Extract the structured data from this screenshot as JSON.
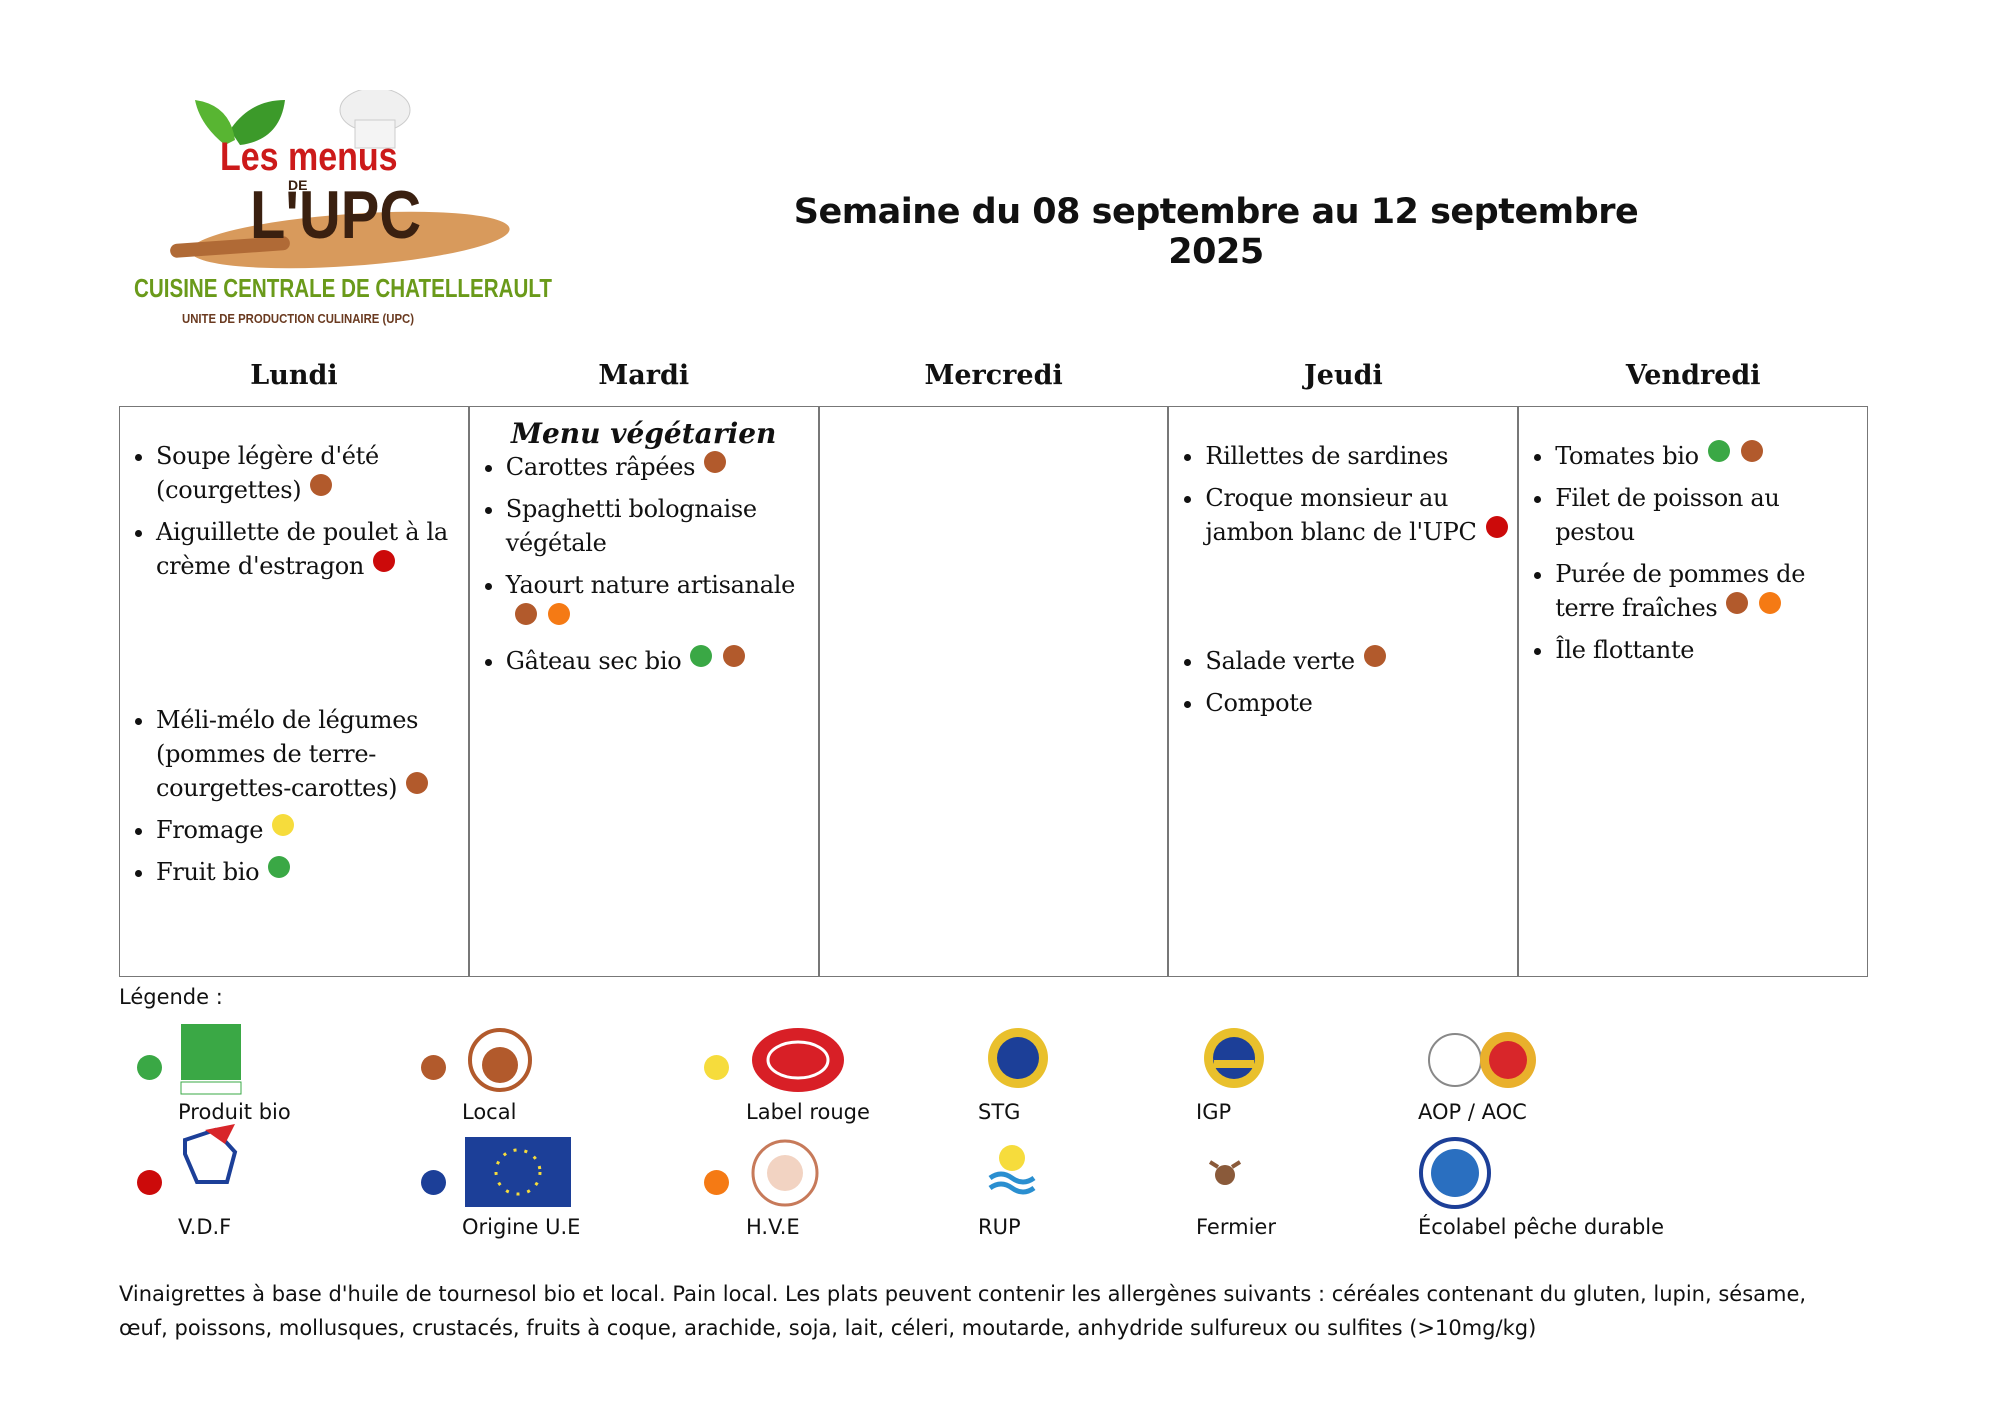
{
  "logo": {
    "line1": "Les menus",
    "line2": "DE",
    "line3": "L'UPC",
    "line4": "CUISINE CENTRALE DE CHATELLERAULT",
    "line5": "UNITE DE PRODUCTION CULINAIRE (UPC)"
  },
  "title": "Semaine du 08 septembre au 12 septembre 2025",
  "days": [
    {
      "name": "Lundi",
      "items": [
        {
          "text": "Soupe légère d'été (courgettes)",
          "marks": [
            "Local"
          ]
        },
        {
          "text": "Aiguillette de poulet à la crème d'estragon",
          "marks": [
            "V.D.F"
          ]
        },
        {
          "text": "Méli-mélo de légumes (pommes de terre-courgettes-carottes)",
          "marks": [
            "Local"
          ]
        },
        {
          "text": "Fromage",
          "marks": [
            "Label rouge"
          ]
        },
        {
          "text": "Fruit bio",
          "marks": [
            "Produit bio"
          ]
        }
      ]
    },
    {
      "name": "Mardi",
      "subtitle": "Menu végétarien",
      "items": [
        {
          "text": "Carottes râpées",
          "marks": [
            "Local"
          ]
        },
        {
          "text": "Spaghetti bolognaise végétale",
          "marks": []
        },
        {
          "text": "Yaourt nature artisanale",
          "marks": [
            "Local",
            "H.V.E"
          ]
        },
        {
          "text": "Gâteau sec bio",
          "marks": [
            "Produit bio",
            "Local"
          ]
        }
      ]
    },
    {
      "name": "Mercredi",
      "items": []
    },
    {
      "name": "Jeudi",
      "items": [
        {
          "text": "Rillettes de sardines",
          "marks": []
        },
        {
          "text": "Croque monsieur au jambon blanc de l'UPC",
          "marks": [
            "V.D.F"
          ]
        },
        {
          "text": "Salade verte",
          "marks": [
            "Local"
          ]
        },
        {
          "text": "Compote",
          "marks": []
        }
      ]
    },
    {
      "name": "Vendredi",
      "items": [
        {
          "text": "Tomates bio",
          "marks": [
            "Produit bio",
            "Local"
          ]
        },
        {
          "text": "Filet de poisson au pestou",
          "marks": []
        },
        {
          "text": "Purée de pommes de terre fraîches",
          "marks": [
            "Local",
            "H.V.E"
          ]
        },
        {
          "text": "Île flottante",
          "marks": []
        }
      ]
    }
  ],
  "legend_title": "Légende :",
  "legend": [
    {
      "name": "Produit bio",
      "color": "#3aa845"
    },
    {
      "name": "Local",
      "color": "#b25a2c"
    },
    {
      "name": "Label rouge",
      "color": "#f6dc3c"
    },
    {
      "name": "STG"
    },
    {
      "name": "IGP"
    },
    {
      "name": "AOP / AOC"
    },
    {
      "name": "V.D.F",
      "color": "#cc0a0a"
    },
    {
      "name": "Origine U.E",
      "color": "#1c3f98"
    },
    {
      "name": "H.V.E",
      "color": "#f57a14"
    },
    {
      "name": "RUP"
    },
    {
      "name": "Fermier"
    },
    {
      "name": "Écolabel pêche durable"
    }
  ],
  "footer": "Vinaigrettes à base d'huile de tournesol bio et local. Pain local. Les plats peuvent contenir les allergènes suivants : céréales contenant du gluten, lupin, sésame, œuf, poissons, mollusques, crustacés, fruits à coque, arachide, soja, lait, céleri, moutarde, anhydride sulfureux ou sulfites (>10mg/kg)"
}
